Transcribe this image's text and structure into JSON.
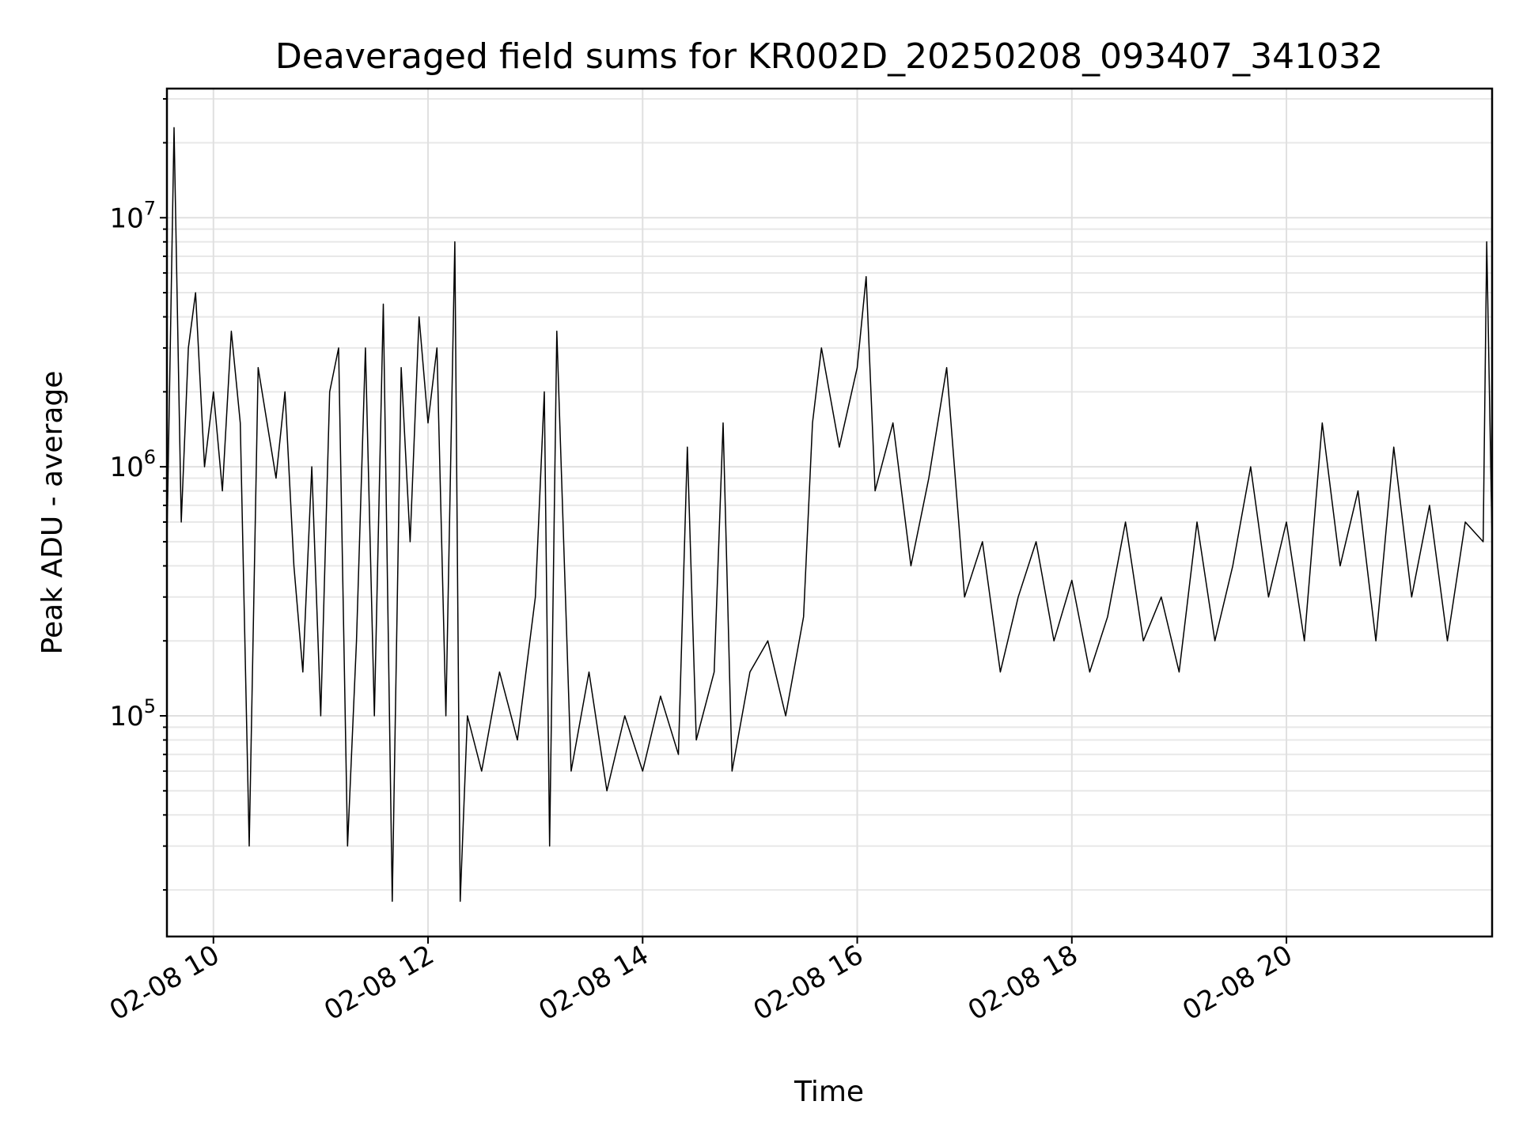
{
  "chart_data": {
    "type": "line",
    "title": "Deaveraged field sums for KR002D_20250208_093407_341032",
    "xlabel": "Time",
    "ylabel": "Peak ADU - average",
    "x_range": [
      "02-08 09:34",
      "02-08 21:55"
    ],
    "ylim": [
      13000,
      33000000
    ],
    "y_scale": "log",
    "grid": true,
    "line_color": "#000000",
    "x_ticks": [
      {
        "t": "02-08 10:00",
        "label": "02-08 10"
      },
      {
        "t": "02-08 12:00",
        "label": "02-08 12"
      },
      {
        "t": "02-08 14:00",
        "label": "02-08 14"
      },
      {
        "t": "02-08 16:00",
        "label": "02-08 16"
      },
      {
        "t": "02-08 18:00",
        "label": "02-08 18"
      },
      {
        "t": "02-08 20:00",
        "label": "02-08 20"
      }
    ],
    "y_ticks": [
      {
        "value": 100000,
        "base": "10",
        "exp": "5"
      },
      {
        "value": 1000000,
        "base": "10",
        "exp": "6"
      },
      {
        "value": 10000000,
        "base": "10",
        "exp": "7"
      }
    ],
    "series": [
      {
        "points": [
          [
            "02-08 09:34",
            500000
          ],
          [
            "02-08 09:38",
            23000000
          ],
          [
            "02-08 09:42",
            600000
          ],
          [
            "02-08 09:46",
            3000000
          ],
          [
            "02-08 09:50",
            5000000
          ],
          [
            "02-08 09:55",
            1000000
          ],
          [
            "02-08 10:00",
            2000000
          ],
          [
            "02-08 10:05",
            800000
          ],
          [
            "02-08 10:10",
            3500000
          ],
          [
            "02-08 10:15",
            1500000
          ],
          [
            "02-08 10:20",
            30000
          ],
          [
            "02-08 10:25",
            2500000
          ],
          [
            "02-08 10:30",
            1500000
          ],
          [
            "02-08 10:35",
            900000
          ],
          [
            "02-08 10:40",
            2000000
          ],
          [
            "02-08 10:45",
            400000
          ],
          [
            "02-08 10:50",
            150000
          ],
          [
            "02-08 10:55",
            1000000
          ],
          [
            "02-08 11:00",
            100000
          ],
          [
            "02-08 11:05",
            2000000
          ],
          [
            "02-08 11:10",
            3000000
          ],
          [
            "02-08 11:15",
            30000
          ],
          [
            "02-08 11:20",
            200000
          ],
          [
            "02-08 11:25",
            3000000
          ],
          [
            "02-08 11:30",
            100000
          ],
          [
            "02-08 11:35",
            4500000
          ],
          [
            "02-08 11:40",
            18000
          ],
          [
            "02-08 11:45",
            2500000
          ],
          [
            "02-08 11:50",
            500000
          ],
          [
            "02-08 11:55",
            4000000
          ],
          [
            "02-08 12:00",
            1500000
          ],
          [
            "02-08 12:05",
            3000000
          ],
          [
            "02-08 12:10",
            100000
          ],
          [
            "02-08 12:15",
            8000000
          ],
          [
            "02-08 12:18",
            18000
          ],
          [
            "02-08 12:22",
            100000
          ],
          [
            "02-08 12:30",
            60000
          ],
          [
            "02-08 12:40",
            150000
          ],
          [
            "02-08 12:50",
            80000
          ],
          [
            "02-08 13:00",
            300000
          ],
          [
            "02-08 13:05",
            2000000
          ],
          [
            "02-08 13:08",
            30000
          ],
          [
            "02-08 13:12",
            3500000
          ],
          [
            "02-08 13:20",
            60000
          ],
          [
            "02-08 13:30",
            150000
          ],
          [
            "02-08 13:40",
            50000
          ],
          [
            "02-08 13:50",
            100000
          ],
          [
            "02-08 14:00",
            60000
          ],
          [
            "02-08 14:10",
            120000
          ],
          [
            "02-08 14:20",
            70000
          ],
          [
            "02-08 14:25",
            1200000
          ],
          [
            "02-08 14:30",
            80000
          ],
          [
            "02-08 14:40",
            150000
          ],
          [
            "02-08 14:45",
            1500000
          ],
          [
            "02-08 14:50",
            60000
          ],
          [
            "02-08 15:00",
            150000
          ],
          [
            "02-08 15:10",
            200000
          ],
          [
            "02-08 15:20",
            100000
          ],
          [
            "02-08 15:30",
            250000
          ],
          [
            "02-08 15:35",
            1500000
          ],
          [
            "02-08 15:40",
            3000000
          ],
          [
            "02-08 15:50",
            1200000
          ],
          [
            "02-08 16:00",
            2500000
          ],
          [
            "02-08 16:05",
            5800000
          ],
          [
            "02-08 16:10",
            800000
          ],
          [
            "02-08 16:20",
            1500000
          ],
          [
            "02-08 16:30",
            400000
          ],
          [
            "02-08 16:40",
            900000
          ],
          [
            "02-08 16:50",
            2500000
          ],
          [
            "02-08 17:00",
            300000
          ],
          [
            "02-08 17:10",
            500000
          ],
          [
            "02-08 17:20",
            150000
          ],
          [
            "02-08 17:30",
            300000
          ],
          [
            "02-08 17:40",
            500000
          ],
          [
            "02-08 17:50",
            200000
          ],
          [
            "02-08 18:00",
            350000
          ],
          [
            "02-08 18:10",
            150000
          ],
          [
            "02-08 18:20",
            250000
          ],
          [
            "02-08 18:30",
            600000
          ],
          [
            "02-08 18:40",
            200000
          ],
          [
            "02-08 18:50",
            300000
          ],
          [
            "02-08 19:00",
            150000
          ],
          [
            "02-08 19:10",
            600000
          ],
          [
            "02-08 19:20",
            200000
          ],
          [
            "02-08 19:30",
            400000
          ],
          [
            "02-08 19:40",
            1000000
          ],
          [
            "02-08 19:50",
            300000
          ],
          [
            "02-08 20:00",
            600000
          ],
          [
            "02-08 20:10",
            200000
          ],
          [
            "02-08 20:20",
            1500000
          ],
          [
            "02-08 20:30",
            400000
          ],
          [
            "02-08 20:40",
            800000
          ],
          [
            "02-08 20:50",
            200000
          ],
          [
            "02-08 21:00",
            1200000
          ],
          [
            "02-08 21:10",
            300000
          ],
          [
            "02-08 21:20",
            700000
          ],
          [
            "02-08 21:30",
            200000
          ],
          [
            "02-08 21:40",
            600000
          ],
          [
            "02-08 21:50",
            500000
          ],
          [
            "02-08 21:52",
            8000000
          ],
          [
            "02-08 21:55",
            500000
          ]
        ]
      }
    ]
  }
}
